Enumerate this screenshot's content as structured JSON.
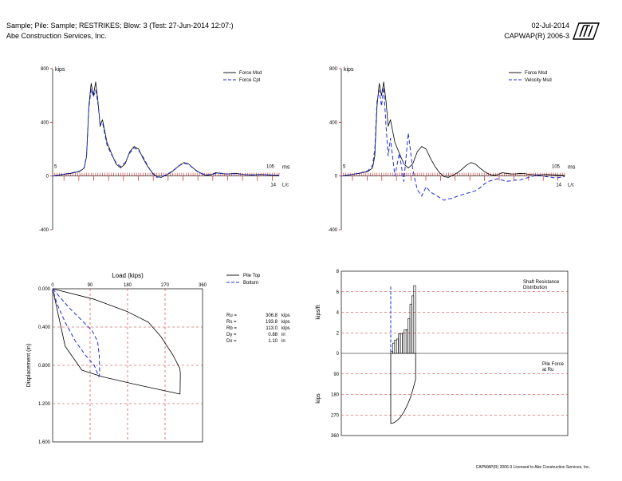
{
  "header": {
    "line1": "Sample; Pile: Sample; RESTRIKES; Blow: 3 (Test: 27-Jun-2014 12:07:)",
    "line2": "Abe Construction Services, Inc.",
    "date": "02-Jul-2014",
    "program": "CAPWAP(R)  2006-3"
  },
  "footer": "CAPWAP(R)  2006-3 Licensed to Abe Construction Services, Inc.",
  "colors": {
    "measured": "#000000",
    "computed": "#1f2fd6",
    "axis_red": "#d02020"
  },
  "chart_data": [
    {
      "type": "line",
      "name": "force-match",
      "ylabel": "kips",
      "xlabel": "ms",
      "ylim": [
        -400,
        800
      ],
      "yticks": [
        -400,
        0,
        400,
        800
      ],
      "time_axis": {
        "start_label": "5",
        "end_label": "105",
        "unit": "ms",
        "lc_label": "14",
        "lc_unit": "L/c"
      },
      "legend": [
        "Force Msd",
        "Force Cpt"
      ],
      "legend_position": "top-right",
      "x": [
        0,
        4,
        8,
        12,
        14,
        15,
        16,
        17,
        18,
        19,
        20,
        21,
        22,
        24,
        26,
        28,
        30,
        32,
        34,
        36,
        38,
        40,
        42,
        44,
        46,
        48,
        50,
        52,
        54,
        56,
        58,
        60,
        62,
        64,
        66,
        68,
        70,
        72,
        74,
        76,
        78,
        80,
        82,
        84,
        86,
        88,
        90,
        92,
        94,
        96,
        98,
        100
      ],
      "series": [
        {
          "name": "Force Msd",
          "style": "solid",
          "values": [
            0,
            10,
            20,
            35,
            60,
            150,
            520,
            690,
            600,
            700,
            560,
            370,
            420,
            250,
            170,
            90,
            60,
            90,
            180,
            220,
            200,
            130,
            70,
            25,
            -5,
            -10,
            5,
            25,
            50,
            80,
            100,
            90,
            60,
            35,
            15,
            5,
            10,
            25,
            20,
            15,
            15,
            20,
            18,
            12,
            10,
            8,
            10,
            12,
            10,
            8,
            6,
            5
          ]
        },
        {
          "name": "Force Cpt",
          "style": "dashed",
          "values": [
            0,
            12,
            22,
            38,
            62,
            160,
            500,
            650,
            590,
            640,
            540,
            390,
            400,
            230,
            160,
            100,
            70,
            100,
            170,
            210,
            190,
            140,
            75,
            20,
            -10,
            -5,
            8,
            28,
            52,
            78,
            95,
            88,
            58,
            32,
            18,
            8,
            12,
            18,
            22,
            16,
            14,
            18,
            16,
            12,
            10,
            9,
            11,
            11,
            10,
            8,
            6,
            5
          ]
        }
      ]
    },
    {
      "type": "line",
      "name": "force-velocity",
      "ylabel": "kips",
      "xlabel": "ms",
      "ylim": [
        -400,
        800
      ],
      "yticks": [
        -400,
        0,
        400,
        800
      ],
      "time_axis": {
        "start_label": "5",
        "end_label": "105",
        "unit": "ms",
        "lc_label": "14",
        "lc_unit": "L/c"
      },
      "legend": [
        "Force Msd",
        "Velocity Msd"
      ],
      "legend_position": "top-right",
      "x": [
        0,
        4,
        8,
        12,
        14,
        15,
        16,
        17,
        18,
        19,
        20,
        21,
        22,
        24,
        26,
        28,
        30,
        32,
        34,
        36,
        38,
        40,
        42,
        44,
        46,
        48,
        50,
        52,
        54,
        56,
        58,
        60,
        62,
        64,
        66,
        68,
        70,
        72,
        74,
        76,
        78,
        80,
        82,
        84,
        86,
        88,
        90,
        92,
        94,
        96,
        98,
        100
      ],
      "series": [
        {
          "name": "Force Msd",
          "style": "solid",
          "values": [
            0,
            10,
            20,
            35,
            60,
            150,
            520,
            690,
            600,
            700,
            560,
            370,
            420,
            250,
            170,
            90,
            60,
            90,
            180,
            220,
            200,
            130,
            70,
            25,
            -5,
            -10,
            5,
            25,
            50,
            80,
            100,
            90,
            60,
            35,
            15,
            5,
            10,
            25,
            20,
            15,
            15,
            20,
            18,
            12,
            10,
            8,
            10,
            12,
            10,
            8,
            6,
            5
          ]
        },
        {
          "name": "Velocity Msd",
          "style": "dashed",
          "values": [
            0,
            10,
            20,
            40,
            80,
            200,
            560,
            640,
            520,
            660,
            380,
            150,
            280,
            0,
            170,
            -40,
            320,
            50,
            -100,
            -150,
            -80,
            -120,
            -140,
            -160,
            -180,
            -170,
            -165,
            -150,
            -140,
            -130,
            -120,
            -110,
            -90,
            -60,
            -40,
            -30,
            -20,
            -30,
            -40,
            -35,
            -30,
            -30,
            -20,
            -10,
            0,
            5,
            0,
            -5,
            -10,
            -15,
            -10,
            -5
          ]
        }
      ]
    },
    {
      "type": "line",
      "name": "load-displacement",
      "title": "Load (kips)",
      "ylabel": "Displacement (in)",
      "xlim": [
        0,
        360
      ],
      "xticks": [
        0,
        90,
        180,
        270,
        360
      ],
      "ylim": [
        0,
        1.6
      ],
      "yticks": [
        "0.000",
        "0.400",
        "0.800",
        "1.200",
        "1.600"
      ],
      "legend": [
        "Pile Top",
        "Bottom"
      ],
      "legend_position": "top-right",
      "series": [
        {
          "name": "Pile Top",
          "style": "solid",
          "points": [
            [
              0,
              0
            ],
            [
              100,
              0.11
            ],
            [
              180,
              0.24
            ],
            [
              230,
              0.35
            ],
            [
              260,
              0.5
            ],
            [
              290,
              0.7
            ],
            [
              305,
              0.83
            ],
            [
              306.8,
              0.88
            ],
            [
              306,
              1.1
            ],
            [
              200,
              1.0
            ],
            [
              120,
              0.92
            ],
            [
              70,
              0.85
            ],
            [
              30,
              0.6
            ],
            [
              0,
              0
            ]
          ]
        },
        {
          "name": "Bottom",
          "style": "dashed",
          "points": [
            [
              0,
              0
            ],
            [
              40,
              0.2
            ],
            [
              70,
              0.33
            ],
            [
              95,
              0.44
            ],
            [
              108,
              0.55
            ],
            [
              112,
              0.7
            ],
            [
              113,
              0.88
            ],
            [
              111,
              0.92
            ],
            [
              100,
              0.8
            ],
            [
              80,
              0.7
            ],
            [
              55,
              0.55
            ],
            [
              30,
              0.35
            ],
            [
              10,
              0.15
            ],
            [
              0,
              0
            ]
          ]
        }
      ],
      "summary": [
        {
          "label": "Ru =",
          "value": "306.8",
          "unit": "kips"
        },
        {
          "label": "Rs =",
          "value": "193.8",
          "unit": "kips"
        },
        {
          "label": "Rb =",
          "value": "113.0",
          "unit": "kips"
        },
        {
          "label": "Dy =",
          "value": "0.88",
          "unit": "in"
        },
        {
          "label": "Dx =",
          "value": "1.10",
          "unit": "in"
        }
      ]
    },
    {
      "type": "bar",
      "name": "resistance-distribution",
      "upper_title": [
        "Shaft Resistance",
        "Distribution"
      ],
      "upper_ylabel": "kips/ft",
      "upper_yticks": [
        0,
        2,
        4,
        6,
        8
      ],
      "shaft_resistance_kips_per_ft": [
        0.2,
        1.0,
        1.3,
        1.4,
        1.9,
        1.9,
        2.0,
        2.3,
        2.3,
        3.4,
        4.8,
        5.6,
        6.6
      ],
      "toe_dashed_kips_per_ft": 6.5,
      "lower_title": [
        "Pile Force",
        "at Ru"
      ],
      "lower_ylabel": "kips",
      "lower_yticks": [
        90,
        180,
        270,
        360
      ],
      "pile_force_at_ru_kips": [
        306.8,
        306.0,
        302.0,
        296.0,
        289.0,
        280.0,
        268.0,
        254.0,
        238.0,
        220.0,
        200.0,
        175.0,
        145.0,
        113.0
      ]
    }
  ]
}
